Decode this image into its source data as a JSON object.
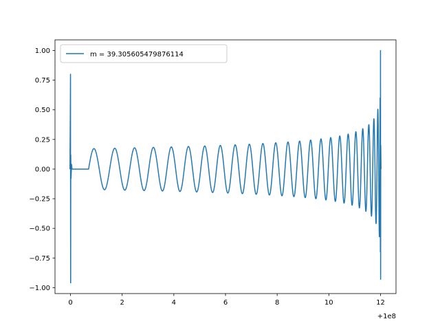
{
  "chart_data": {
    "type": "line",
    "title": "",
    "xlabel": "",
    "ylabel": "",
    "xlim": [
      -0.6,
      12.6
    ],
    "ylim": [
      -1.05,
      1.09
    ],
    "x_ticks": [
      0,
      2,
      4,
      6,
      8,
      10,
      12
    ],
    "x_tick_labels": [
      "0",
      "2",
      "4",
      "6",
      "8",
      "10",
      "12"
    ],
    "y_ticks": [
      -1.0,
      -0.75,
      -0.5,
      -0.25,
      0.0,
      0.25,
      0.5,
      0.75,
      1.0
    ],
    "y_tick_labels": [
      "−1.00",
      "−0.75",
      "−0.50",
      "−0.25",
      "0.00",
      "0.25",
      "0.50",
      "0.75",
      "1.00"
    ],
    "x_offset_label": "+1e8",
    "grid": false,
    "legend": {
      "position": "top-left",
      "entries": [
        "m = 39.305605479876114"
      ]
    },
    "series": [
      {
        "name": "m = 39.305605479876114",
        "color": "#1f77b4",
        "x_range": [
          0,
          12
        ],
        "description": "initial transient spike near x=0 (peaks 0.8 and -0.96), flat zero until x≈0.7, then chirp oscillation growing from amplitude ≈0.17 at x≈0.7 to ≈0.5 near x≈11.9, peaking ≈1.0 / -0.93 at x≈12",
        "key_points": [
          {
            "x": 0.0,
            "y": 0.8
          },
          {
            "x": 0.0,
            "y": -0.96
          },
          {
            "x": 0.7,
            "y": 0.17
          },
          {
            "x": 4.0,
            "y": 0.19
          },
          {
            "x": 8.0,
            "y": 0.23
          },
          {
            "x": 10.0,
            "y": 0.29
          },
          {
            "x": 11.0,
            "y": 0.36
          },
          {
            "x": 11.9,
            "y": 0.53
          },
          {
            "x": 12.0,
            "y": 1.0
          },
          {
            "x": 12.0,
            "y": -0.93
          }
        ]
      }
    ]
  }
}
